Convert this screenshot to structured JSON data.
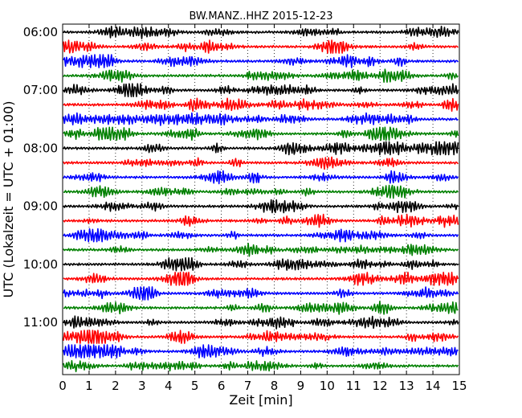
{
  "chart_data": {
    "type": "line",
    "title": "BW.MANZ..HHZ 2015-12-23",
    "xlabel": "Zeit  [min]",
    "ylabel": "UTC (Lokalzeit = UTC + 01:00)",
    "xlim": [
      0,
      15
    ],
    "x_ticks": [
      "0",
      "1",
      "2",
      "3",
      "4",
      "5",
      "6",
      "7",
      "8",
      "9",
      "10",
      "11",
      "12",
      "13",
      "14",
      "15"
    ],
    "y_tick_labels": [
      "06:00",
      "07:00",
      "08:00",
      "09:00",
      "10:00",
      "11:00"
    ],
    "y_tick_hours": [
      6,
      7,
      8,
      9,
      10,
      11
    ],
    "start_hour": 6,
    "trace_interval_min": 15,
    "trace_count": 24,
    "trace_colors": [
      "#000000",
      "#ff0000",
      "#0000ff",
      "#008000"
    ],
    "grid": "vertical-dotted",
    "traces": [
      {
        "start": "06:00",
        "color": "#000000"
      },
      {
        "start": "06:15",
        "color": "#ff0000"
      },
      {
        "start": "06:30",
        "color": "#0000ff"
      },
      {
        "start": "06:45",
        "color": "#008000"
      },
      {
        "start": "07:00",
        "color": "#000000"
      },
      {
        "start": "07:15",
        "color": "#ff0000"
      },
      {
        "start": "07:30",
        "color": "#0000ff"
      },
      {
        "start": "07:45",
        "color": "#008000"
      },
      {
        "start": "08:00",
        "color": "#000000"
      },
      {
        "start": "08:15",
        "color": "#ff0000"
      },
      {
        "start": "08:30",
        "color": "#0000ff"
      },
      {
        "start": "08:45",
        "color": "#008000"
      },
      {
        "start": "09:00",
        "color": "#000000"
      },
      {
        "start": "09:15",
        "color": "#ff0000"
      },
      {
        "start": "09:30",
        "color": "#0000ff"
      },
      {
        "start": "09:45",
        "color": "#008000"
      },
      {
        "start": "10:00",
        "color": "#000000"
      },
      {
        "start": "10:15",
        "color": "#ff0000"
      },
      {
        "start": "10:30",
        "color": "#0000ff"
      },
      {
        "start": "10:45",
        "color": "#008000"
      },
      {
        "start": "11:00",
        "color": "#000000"
      },
      {
        "start": "11:15",
        "color": "#ff0000"
      },
      {
        "start": "11:30",
        "color": "#0000ff"
      },
      {
        "start": "11:45",
        "color": "#008000"
      }
    ]
  }
}
